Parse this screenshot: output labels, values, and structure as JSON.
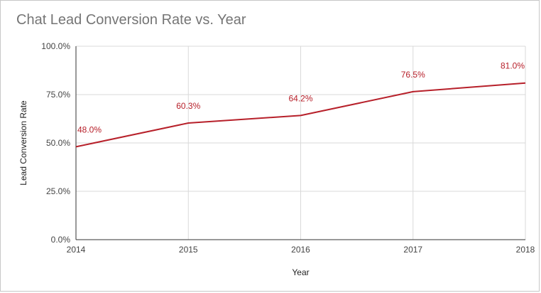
{
  "chart_data": {
    "type": "line",
    "title": "Chat Lead Conversion Rate vs. Year",
    "xlabel": "Year",
    "ylabel": "Lead Conversion Rate",
    "x": [
      2014,
      2015,
      2016,
      2017,
      2018
    ],
    "series": [
      {
        "values": [
          48.0,
          60.3,
          64.2,
          76.5,
          81.0
        ],
        "data_labels": [
          "48.0%",
          "60.3%",
          "64.2%",
          "76.5%",
          "81.0%"
        ],
        "color": "#b7202a"
      }
    ],
    "ylim": [
      0,
      100
    ],
    "y_ticks": [
      0,
      25,
      50,
      75,
      100
    ],
    "y_tick_labels": [
      "0.0%",
      "25.0%",
      "50.0%",
      "75.0%",
      "100.0%"
    ],
    "x_tick_labels": [
      "2014",
      "2015",
      "2016",
      "2017",
      "2018"
    ],
    "grid": true,
    "legend": "none"
  }
}
